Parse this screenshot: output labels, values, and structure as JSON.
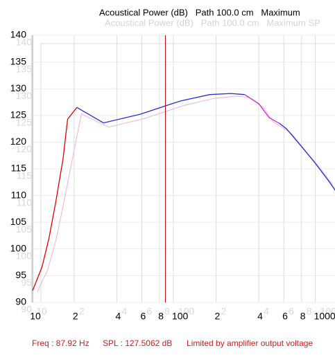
{
  "chart_data": {
    "type": "line",
    "title": "Acoustical Power (dB)   Path 100.0 cm   Maximum",
    "ghost_title": "Acoustical Power (dB)   Path 100.0 cm   Maximum SP",
    "log_x": true,
    "grid": true,
    "xlim": [
      10.2,
      1440
    ],
    "ylim": [
      90,
      140
    ],
    "xticks": [
      10,
      {
        "value": 20,
        "label": "2"
      },
      {
        "value": 40,
        "label": "4"
      },
      {
        "value": 60,
        "label": "6"
      },
      {
        "value": 80,
        "label": "8"
      },
      100,
      {
        "value": 200,
        "label": "2"
      },
      {
        "value": 400,
        "label": "4"
      },
      {
        "value": 600,
        "label": "6"
      },
      {
        "value": 800,
        "label": "8"
      },
      1000
    ],
    "yticks": [
      90,
      95,
      100,
      105,
      110,
      115,
      120,
      125,
      130,
      135,
      140
    ],
    "series": [
      {
        "color": "#e00000",
        "x": [
          10.2,
          11.9,
          13.3,
          14.9,
          16.7,
          18.0,
          20.9
        ],
        "values": [
          92.2,
          96.7,
          102,
          109,
          116.8,
          124.3,
          126.5
        ]
      },
      {
        "color": "#2a2ad0",
        "x": [
          20.9,
          32.2,
          58,
          112,
          180,
          254,
          318
        ],
        "values": [
          126.5,
          123.6,
          125.2,
          127.7,
          128.9,
          129.1,
          128.9
        ]
      },
      {
        "color": "#c030d0",
        "x": [
          318,
          400,
          472,
          560
        ],
        "values": [
          128.9,
          127.2,
          124.6,
          123.5
        ]
      },
      {
        "color": "#2a2ad0",
        "x": [
          560,
          627,
          787,
          990,
          1245,
          1440
        ],
        "values": [
          123.5,
          122.5,
          119.4,
          116.2,
          112.7,
          110.3
        ]
      }
    ],
    "ghost_series": {
      "color": "#f2b8e4",
      "x": [
        11,
        13,
        15,
        17,
        19.5,
        22.5,
        35,
        62,
        120,
        195,
        272,
        340,
        430,
        505,
        600,
        680,
        845,
        1060,
        1330
      ],
      "values": [
        92,
        96,
        102,
        109,
        117,
        125.3,
        122.8,
        124.4,
        126.9,
        128.2,
        128.6,
        128.4,
        126.5,
        123.8,
        122.6,
        121.6,
        118.5,
        115.4,
        112
      ]
    },
    "cursor": {
      "x": 87.92,
      "color": "#c00000"
    },
    "status": [
      "Freq : 87.92 Hz",
      "SPL : 127.5062 dB",
      "Limited by amplifier output voltage"
    ]
  }
}
